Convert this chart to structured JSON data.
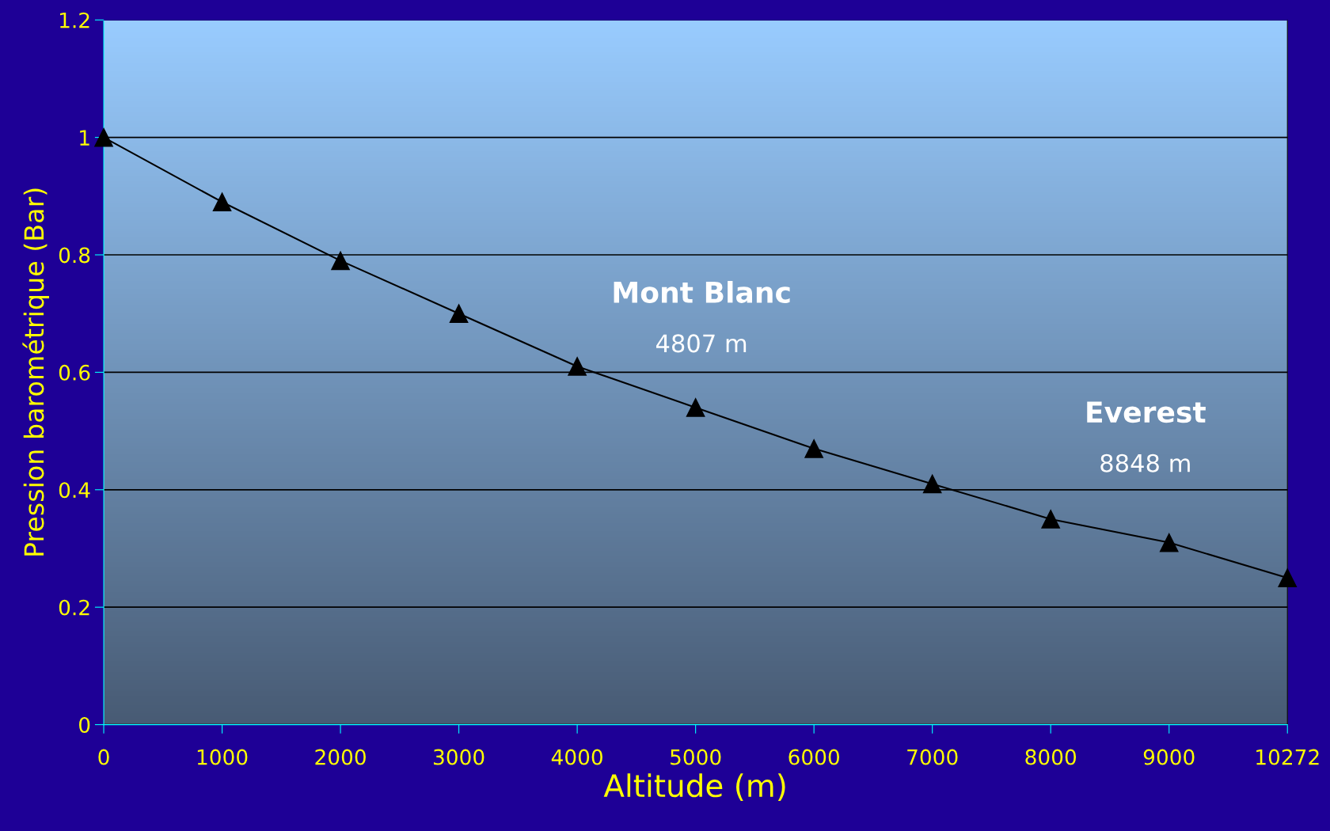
{
  "chart_data": {
    "type": "line",
    "xlabel": "Altitude (m)",
    "ylabel": "Pression barométrique (Bar)",
    "categories": [
      "0",
      "1000",
      "2000",
      "3000",
      "4000",
      "5000",
      "6000",
      "7000",
      "8000",
      "9000",
      "10272"
    ],
    "series": [
      {
        "color": "#000000",
        "values": [
          1,
          0.89,
          0.79,
          0.7,
          0.61,
          0.54,
          0.47,
          0.41,
          0.35,
          0.31,
          0.25
        ]
      }
    ],
    "ylim": [
      0,
      1.2
    ],
    "yticks": [
      0,
      0.2,
      0.4,
      0.6,
      0.8,
      1,
      1.2
    ],
    "grid": "y",
    "marker": "triangle",
    "line_style": "solid",
    "annotations": [
      "Mont Blanc",
      "4807 m",
      "Everest",
      "8848 m"
    ]
  }
}
